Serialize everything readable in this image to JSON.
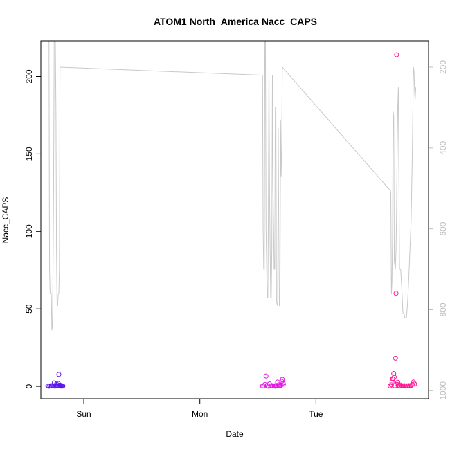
{
  "chart_data": {
    "type": "scatter",
    "title": "ATOM1 North_America Nacc_CAPS",
    "xlabel": "Date",
    "ylabel": "Nacc_CAPS",
    "ylim": [
      -8,
      223
    ],
    "y_ticks": [
      "0",
      "50",
      "100",
      "150",
      "200"
    ],
    "x_ticks": [
      "Sun",
      "Mon",
      "Tue"
    ],
    "x_tick_days": [
      1,
      2,
      3
    ],
    "xlim_days": [
      0.63,
      3.97
    ],
    "right_axis": {
      "label": "",
      "reversed": true,
      "lim": [
        1020,
        135
      ],
      "ticks": [
        "200",
        "400",
        "600",
        "800",
        "1000"
      ],
      "color": "#bebebe"
    },
    "line_series": {
      "name": "",
      "color": "#c8c8c8",
      "points": [
        [
          0.7,
          135
        ],
        [
          0.705,
          700
        ],
        [
          0.71,
          760
        ],
        [
          0.72,
          760
        ],
        [
          0.725,
          850
        ],
        [
          0.73,
          840
        ],
        [
          0.735,
          700
        ],
        [
          0.74,
          500
        ],
        [
          0.745,
          135
        ],
        [
          0.755,
          135
        ],
        [
          0.76,
          300
        ],
        [
          0.765,
          650
        ],
        [
          0.77,
          790
        ],
        [
          0.775,
          790
        ],
        [
          0.78,
          760
        ],
        [
          0.785,
          760
        ],
        [
          0.79,
          700
        ],
        [
          0.795,
          200
        ],
        [
          2.54,
          220
        ],
        [
          2.545,
          600
        ],
        [
          2.55,
          700
        ],
        [
          2.555,
          700
        ],
        [
          2.56,
          135
        ],
        [
          2.565,
          135
        ],
        [
          2.57,
          600
        ],
        [
          2.58,
          770
        ],
        [
          2.585,
          770
        ],
        [
          2.59,
          580
        ],
        [
          2.595,
          200
        ],
        [
          2.6,
          500
        ],
        [
          2.61,
          770
        ],
        [
          2.615,
          770
        ],
        [
          2.62,
          650
        ],
        [
          2.625,
          220
        ],
        [
          2.63,
          500
        ],
        [
          2.64,
          700
        ],
        [
          2.645,
          700
        ],
        [
          2.65,
          300
        ],
        [
          2.655,
          300
        ],
        [
          2.66,
          780
        ],
        [
          2.67,
          790
        ],
        [
          2.675,
          350
        ],
        [
          2.68,
          600
        ],
        [
          2.685,
          790
        ],
        [
          2.69,
          790
        ],
        [
          2.695,
          330
        ],
        [
          2.7,
          470
        ],
        [
          2.705,
          400
        ],
        [
          2.71,
          200
        ],
        [
          3.64,
          505
        ],
        [
          3.645,
          510
        ],
        [
          3.65,
          760
        ],
        [
          3.655,
          730
        ],
        [
          3.66,
          610
        ],
        [
          3.665,
          310
        ],
        [
          3.67,
          320
        ],
        [
          3.675,
          680
        ],
        [
          3.68,
          690
        ],
        [
          3.685,
          700
        ],
        [
          3.69,
          650
        ],
        [
          3.695,
          550
        ],
        [
          3.7,
          400
        ],
        [
          3.705,
          300
        ],
        [
          3.71,
          250
        ],
        [
          3.72,
          700
        ],
        [
          3.73,
          700
        ],
        [
          3.74,
          750
        ],
        [
          3.75,
          810
        ],
        [
          3.76,
          810
        ],
        [
          3.765,
          820
        ],
        [
          3.77,
          820
        ],
        [
          3.78,
          820
        ],
        [
          3.79,
          780
        ],
        [
          3.8,
          720
        ],
        [
          3.81,
          650
        ],
        [
          3.82,
          580
        ],
        [
          3.83,
          420
        ],
        [
          3.84,
          200
        ],
        [
          3.845,
          210
        ],
        [
          3.85,
          260
        ],
        [
          3.855,
          280
        ],
        [
          3.86,
          250
        ]
      ]
    },
    "points_note": "many overlapping points near zero, colored by time",
    "scatter_series": [
      {
        "name": "",
        "color": "#5a14f0",
        "points": [
          [
            0.69,
            0.3
          ],
          [
            0.7,
            0.1
          ],
          [
            0.71,
            0.4
          ],
          [
            0.72,
            0.2
          ],
          [
            0.73,
            0.5
          ],
          [
            0.74,
            0.3
          ],
          [
            0.745,
            2.2
          ],
          [
            0.75,
            0.1
          ],
          [
            0.76,
            0.6
          ],
          [
            0.765,
            1.5
          ],
          [
            0.77,
            0.2
          ],
          [
            0.775,
            0.4
          ],
          [
            0.78,
            1.9
          ],
          [
            0.785,
            7.7
          ],
          [
            0.79,
            0.3
          ],
          [
            0.795,
            0.8
          ],
          [
            0.8,
            0.2
          ],
          [
            0.805,
            0.5
          ],
          [
            0.81,
            0.1
          ],
          [
            0.815,
            0.4
          ],
          [
            0.82,
            0.2
          ]
        ]
      },
      {
        "name": "",
        "color": "#e614e6",
        "points": [
          [
            2.54,
            0.2
          ],
          [
            2.55,
            0.3
          ],
          [
            2.56,
            1.2
          ],
          [
            2.57,
            6.7
          ],
          [
            2.58,
            0.4
          ],
          [
            2.59,
            0.1
          ],
          [
            2.6,
            1.6
          ],
          [
            2.61,
            0.3
          ],
          [
            2.62,
            0.5
          ],
          [
            2.63,
            0.2
          ],
          [
            2.64,
            0.4
          ],
          [
            2.65,
            0.1
          ],
          [
            2.655,
            0.6
          ],
          [
            2.66,
            0.3
          ],
          [
            2.67,
            2.8
          ],
          [
            2.675,
            0.2
          ],
          [
            2.68,
            1.0
          ],
          [
            2.685,
            0.4
          ],
          [
            2.69,
            0.3
          ],
          [
            2.7,
            0.8
          ],
          [
            2.705,
            3.2
          ],
          [
            2.71,
            4.5
          ],
          [
            2.715,
            2.1
          ],
          [
            2.72,
            1.5
          ]
        ]
      },
      {
        "name": "",
        "color": "#ff1493",
        "points": [
          [
            3.64,
            0.3
          ],
          [
            3.65,
            1.0
          ],
          [
            3.655,
            2.5
          ],
          [
            3.66,
            5.0
          ],
          [
            3.665,
            4.8
          ],
          [
            3.67,
            8.3
          ],
          [
            3.675,
            6.0
          ],
          [
            3.68,
            0.4
          ],
          [
            3.685,
            18.2
          ],
          [
            3.69,
            60.0
          ],
          [
            3.695,
            214.0
          ],
          [
            3.7,
            1.2
          ],
          [
            3.705,
            2.6
          ],
          [
            3.71,
            0.6
          ],
          [
            3.72,
            0.2
          ],
          [
            3.73,
            0.8
          ],
          [
            3.74,
            0.4
          ],
          [
            3.75,
            0.3
          ],
          [
            3.76,
            0.5
          ],
          [
            3.77,
            0.2
          ],
          [
            3.78,
            0.4
          ],
          [
            3.79,
            0.3
          ],
          [
            3.8,
            0.5
          ],
          [
            3.81,
            0.2
          ],
          [
            3.82,
            0.6
          ],
          [
            3.83,
            1.2
          ],
          [
            3.84,
            2.8
          ],
          [
            3.85,
            1.5
          ]
        ]
      }
    ],
    "grid": false,
    "legend": "none"
  }
}
